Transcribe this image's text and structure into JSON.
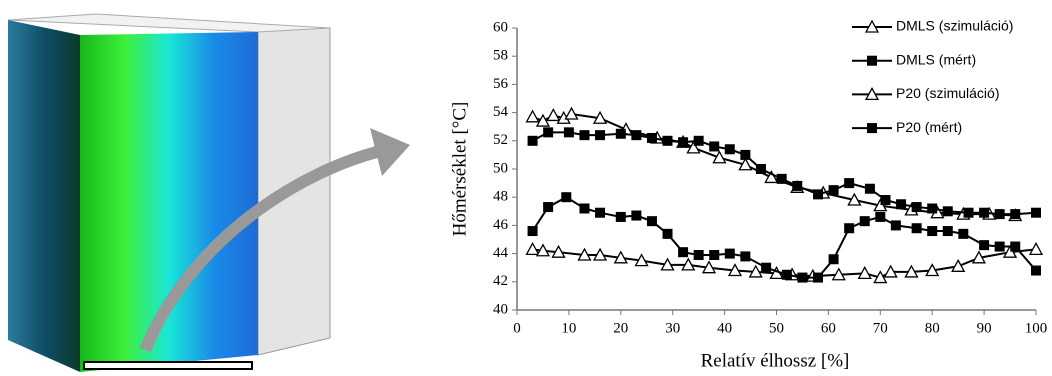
{
  "chart_data": {
    "type": "line",
    "xlabel": "Relatív élhossz [%]",
    "ylabel": "Hőmérséklet [°C]",
    "xlim": [
      0,
      100
    ],
    "xticks": [
      0,
      10,
      20,
      30,
      40,
      50,
      60,
      70,
      80,
      90,
      100
    ],
    "ylim": [
      40,
      60
    ],
    "yticks": [
      40,
      42,
      44,
      46,
      48,
      50,
      52,
      54,
      56,
      58,
      60
    ],
    "grid": false,
    "legend": "upper-right",
    "series": [
      {
        "name": "DMLS (szimuláció)",
        "color": "#000000",
        "marker": "triangle",
        "x": [
          3,
          5,
          7,
          9,
          10.5,
          16,
          21,
          27,
          32,
          34,
          39,
          44,
          49,
          54,
          59,
          65,
          70,
          76,
          81,
          86,
          91,
          96
        ],
        "values": [
          53.7,
          53.4,
          53.8,
          53.6,
          53.9,
          53.6,
          52.8,
          52.2,
          51.9,
          51.5,
          50.8,
          50.3,
          49.4,
          48.7,
          48.3,
          47.8,
          47.4,
          47.1,
          46.9,
          46.8,
          46.8,
          46.7
        ]
      },
      {
        "name": "DMLS (mért)",
        "color": "#000000",
        "marker": "square",
        "x": [
          3,
          6,
          10,
          13,
          16,
          20,
          23,
          26,
          29,
          32,
          35,
          38,
          41,
          44,
          47,
          51,
          54,
          58,
          61,
          64,
          68,
          71,
          74,
          77,
          80,
          83,
          87,
          90,
          93,
          96,
          100
        ],
        "values": [
          52.0,
          52.6,
          52.6,
          52.4,
          52.4,
          52.5,
          52.4,
          52.2,
          52.0,
          51.9,
          52.0,
          51.6,
          51.4,
          51.0,
          50.0,
          49.3,
          48.8,
          48.2,
          48.5,
          49.0,
          48.6,
          47.8,
          47.5,
          47.3,
          47.2,
          47.0,
          46.9,
          46.9,
          46.8,
          46.8,
          46.9
        ]
      },
      {
        "name": "P20 (szimuláció)",
        "color": "#000000",
        "marker": "triangle",
        "x": [
          3,
          5,
          8,
          13,
          16,
          20,
          24,
          29,
          33,
          37,
          42,
          46,
          50,
          53,
          57,
          62,
          67,
          70,
          72,
          76,
          80,
          85,
          89,
          95,
          100
        ],
        "values": [
          44.3,
          44.2,
          44.1,
          43.9,
          43.9,
          43.7,
          43.5,
          43.2,
          43.2,
          43.0,
          42.8,
          42.7,
          42.6,
          42.5,
          42.4,
          42.5,
          42.6,
          42.3,
          42.7,
          42.7,
          42.8,
          43.1,
          43.7,
          44.1,
          44.3
        ]
      },
      {
        "name": "P20 (mért)",
        "color": "#000000",
        "marker": "square",
        "x": [
          3,
          6,
          9.5,
          13,
          16,
          20,
          23,
          26,
          29,
          32,
          35,
          38,
          41,
          44,
          48,
          52,
          55,
          58,
          61,
          64,
          67,
          70,
          73,
          77,
          80,
          83,
          86,
          90,
          93,
          96,
          100
        ],
        "values": [
          45.6,
          47.3,
          48.0,
          47.2,
          46.9,
          46.6,
          46.7,
          46.3,
          45.4,
          44.1,
          43.9,
          43.9,
          44.0,
          43.8,
          43.0,
          42.5,
          42.3,
          42.3,
          43.6,
          45.8,
          46.3,
          46.6,
          46.0,
          45.8,
          45.6,
          45.6,
          45.4,
          44.6,
          44.5,
          44.5,
          42.8
        ]
      }
    ]
  }
}
